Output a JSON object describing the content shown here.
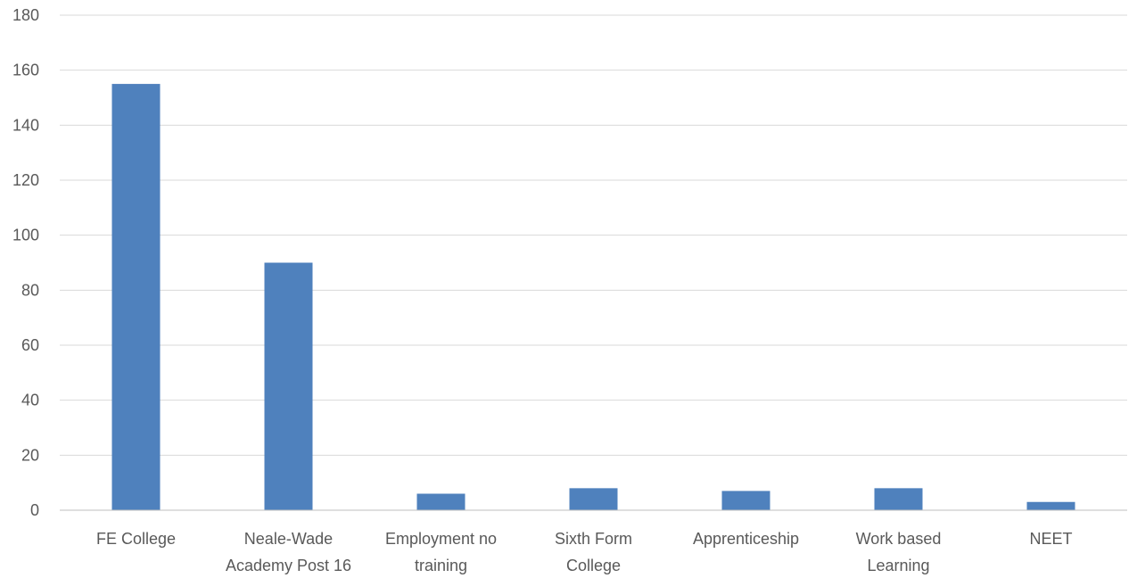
{
  "chart_data": {
    "type": "bar",
    "title": "",
    "xlabel": "",
    "ylabel": "",
    "categories": [
      [
        "FE College"
      ],
      [
        "Neale-Wade",
        "Academy Post 16"
      ],
      [
        "Employment no",
        "training"
      ],
      [
        "Sixth Form",
        "College"
      ],
      [
        "Apprenticeship"
      ],
      [
        "Work based",
        "Learning"
      ],
      [
        "NEET"
      ]
    ],
    "values": [
      155,
      90,
      6,
      8,
      7,
      8,
      3
    ],
    "ylim": [
      0,
      180
    ],
    "yticks": [
      "0",
      "20",
      "40",
      "60",
      "80",
      "100",
      "120",
      "140",
      "160",
      "180"
    ],
    "grid": true,
    "legend": "none",
    "bar_color": "#4F81BD",
    "grid_color": "#D9D9D9",
    "axis_color": "#BFBFBF"
  }
}
